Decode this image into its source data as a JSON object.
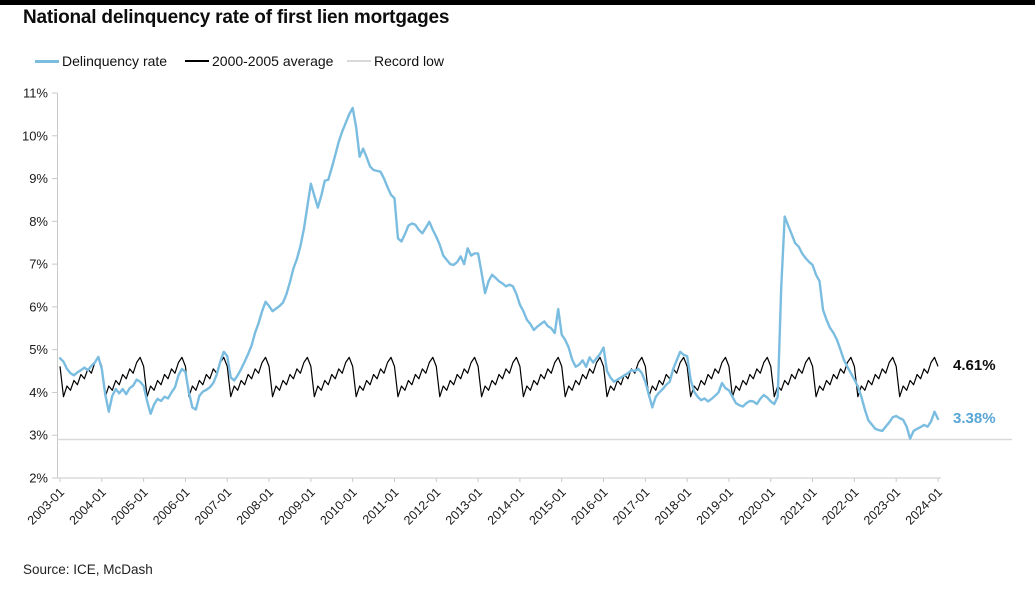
{
  "page": {
    "title": "National delinquency rate of first lien mortgages",
    "source": "Source: ICE, McDash"
  },
  "legend": {
    "delinquency": "Delinquency rate",
    "average": "2000-2005 average",
    "record_low": "Record low"
  },
  "annotations": {
    "avg_end_label": "4.61%",
    "avg_end_value": 4.61,
    "delinquency_end_label": "3.38%",
    "delinquency_end_value": 3.38
  },
  "colors": {
    "delinquency_line": "#7bbde0",
    "delinquency_text": "#58a6d6",
    "average_line": "#000000",
    "record_low_line": "#d9d9d9",
    "axis": "#c9c9c9",
    "tick_text": "#1a1a1a"
  },
  "chart_data": {
    "type": "line",
    "title": "National delinquency rate of first lien mortgages",
    "xlabel": "",
    "ylabel": "",
    "ylim": [
      2,
      11
    ],
    "grid": false,
    "legend_position": "top",
    "y_tick_labels": [
      "11%",
      "10%",
      "9%",
      "8%",
      "7%",
      "6%",
      "5%",
      "4%",
      "3%",
      "2%"
    ],
    "y_tick_values": [
      11,
      10,
      9,
      8,
      7,
      6,
      5,
      4,
      3,
      2
    ],
    "x_tick_labels": [
      "2003-01",
      "2004-01",
      "2005-01",
      "2006-01",
      "2007-01",
      "2008-01",
      "2009-01",
      "2010-01",
      "2011-01",
      "2012-01",
      "2013-01",
      "2014-01",
      "2015-01",
      "2016-01",
      "2017-01",
      "2018-01",
      "2019-01",
      "2020-01",
      "2021-01",
      "2022-01",
      "2023-01",
      "2024-01"
    ],
    "x_start": "2003-01",
    "x_end": "2024-01",
    "x_step": "1 month",
    "series": [
      {
        "name": "Delinquency rate",
        "color": "#7bbde0",
        "end_label": "3.38%",
        "monthly_values": [
          4.8,
          4.72,
          4.55,
          4.45,
          4.4,
          4.47,
          4.52,
          4.58,
          4.52,
          4.62,
          4.7,
          4.83,
          4.55,
          3.95,
          3.55,
          3.92,
          4.08,
          3.98,
          4.08,
          3.96,
          4.1,
          4.16,
          4.3,
          4.25,
          4.15,
          3.8,
          3.5,
          3.72,
          3.85,
          3.8,
          3.9,
          3.86,
          4.0,
          4.12,
          4.4,
          4.55,
          4.48,
          4.0,
          3.65,
          3.6,
          3.92,
          4.02,
          4.06,
          4.12,
          4.22,
          4.42,
          4.72,
          4.95,
          4.85,
          4.35,
          4.28,
          4.4,
          4.55,
          4.72,
          4.9,
          5.1,
          5.4,
          5.62,
          5.9,
          6.12,
          6.02,
          5.9,
          5.96,
          6.02,
          6.1,
          6.3,
          6.58,
          6.9,
          7.12,
          7.42,
          7.82,
          8.35,
          8.88,
          8.6,
          8.32,
          8.6,
          8.95,
          8.97,
          9.25,
          9.55,
          9.86,
          10.1,
          10.3,
          10.5,
          10.65,
          10.2,
          9.51,
          9.7,
          9.5,
          9.28,
          9.2,
          9.18,
          9.16,
          9.0,
          8.8,
          8.62,
          8.54,
          7.6,
          7.53,
          7.7,
          7.9,
          7.95,
          7.92,
          7.8,
          7.72,
          7.85,
          7.99,
          7.8,
          7.64,
          7.45,
          7.2,
          7.1,
          7.0,
          6.98,
          7.05,
          7.18,
          7.0,
          7.37,
          7.2,
          7.25,
          7.25,
          6.8,
          6.32,
          6.6,
          6.75,
          6.68,
          6.6,
          6.55,
          6.48,
          6.52,
          6.48,
          6.3,
          6.05,
          5.9,
          5.7,
          5.6,
          5.46,
          5.54,
          5.6,
          5.66,
          5.55,
          5.5,
          5.39,
          5.95,
          5.35,
          5.23,
          5.05,
          4.77,
          4.6,
          4.65,
          4.75,
          4.6,
          4.82,
          4.7,
          4.8,
          4.9,
          5.05,
          4.5,
          4.35,
          4.25,
          4.3,
          4.35,
          4.4,
          4.45,
          4.52,
          4.5,
          4.55,
          4.45,
          4.25,
          3.95,
          3.65,
          3.9,
          4.0,
          4.08,
          4.18,
          4.25,
          4.55,
          4.75,
          4.95,
          4.88,
          4.85,
          4.3,
          4.02,
          3.9,
          3.82,
          3.86,
          3.79,
          3.85,
          3.92,
          4.0,
          4.22,
          4.1,
          4.05,
          3.9,
          3.75,
          3.7,
          3.67,
          3.75,
          3.8,
          3.79,
          3.73,
          3.85,
          3.94,
          3.88,
          3.79,
          3.73,
          3.9,
          6.45,
          8.11,
          7.9,
          7.7,
          7.49,
          7.41,
          7.25,
          7.14,
          7.05,
          6.98,
          6.75,
          6.6,
          5.93,
          5.7,
          5.51,
          5.39,
          5.23,
          5.0,
          4.76,
          4.6,
          4.45,
          4.3,
          4.14,
          3.9,
          3.6,
          3.35,
          3.25,
          3.15,
          3.12,
          3.1,
          3.2,
          3.3,
          3.42,
          3.45,
          3.4,
          3.36,
          3.2,
          2.92,
          3.1,
          3.15,
          3.19,
          3.24,
          3.2,
          3.32,
          3.55,
          3.38
        ]
      },
      {
        "name": "2000-2005 average",
        "color": "#000000",
        "note": "Same 12-month seasonal pattern repeated every calendar year, Jan-Dec",
        "seasonal_pattern_jan_to_dec": [
          4.61,
          3.9,
          4.15,
          4.05,
          4.28,
          4.18,
          4.42,
          4.32,
          4.55,
          4.45,
          4.7,
          4.82
        ],
        "end_label": "4.61%"
      },
      {
        "name": "Record low",
        "color": "#d9d9d9",
        "value": 2.9
      }
    ]
  }
}
